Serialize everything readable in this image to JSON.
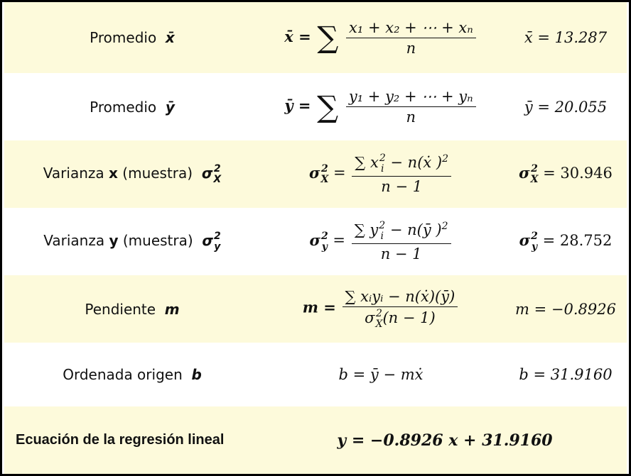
{
  "rows": [
    {
      "label": "Promedio",
      "label_sym": "x̄",
      "formula_lhs": "x̄ =",
      "formula_num": "x₁ + x₂ + ⋯ + xₙ",
      "formula_den": "n",
      "result": "x̄ = 13.287"
    },
    {
      "label": "Promedio",
      "label_sym": "ȳ",
      "formula_lhs": "ȳ =",
      "formula_num": "y₁ + y₂ + ⋯ + yₙ",
      "formula_den": "n",
      "result": "ȳ = 20.055"
    },
    {
      "label_pre": "Varianza",
      "label_var": "x",
      "label_post": "(muestra)",
      "formula_num": "∑ x − n(ẋ )",
      "formula_den": "n − 1",
      "result_val": "= 30.946"
    },
    {
      "label_pre": "Varianza",
      "label_var": "y",
      "label_post": "(muestra)",
      "formula_num": "∑ y − n(ȳ )",
      "formula_den": "n − 1",
      "result_val": "= 28.752"
    },
    {
      "label": "Pendiente",
      "label_sym": "m",
      "formula_lhs": "m =",
      "formula_num": "∑ xᵢyᵢ − n(ẋ)(ȳ)",
      "formula_den": "(n − 1)",
      "result": "m = −0.8926"
    },
    {
      "label": "Ordenada origen",
      "label_sym": "b",
      "formula": "b = ȳ − mẋ",
      "result": "b = 31.9160"
    }
  ],
  "final": {
    "label": "Ecuación de la regresión lineal",
    "equation": "y = −0.8926 x + 31.9160"
  },
  "colors": {
    "odd_row": "#fdfadb",
    "even_row": "#ffffff",
    "border": "#000000"
  }
}
